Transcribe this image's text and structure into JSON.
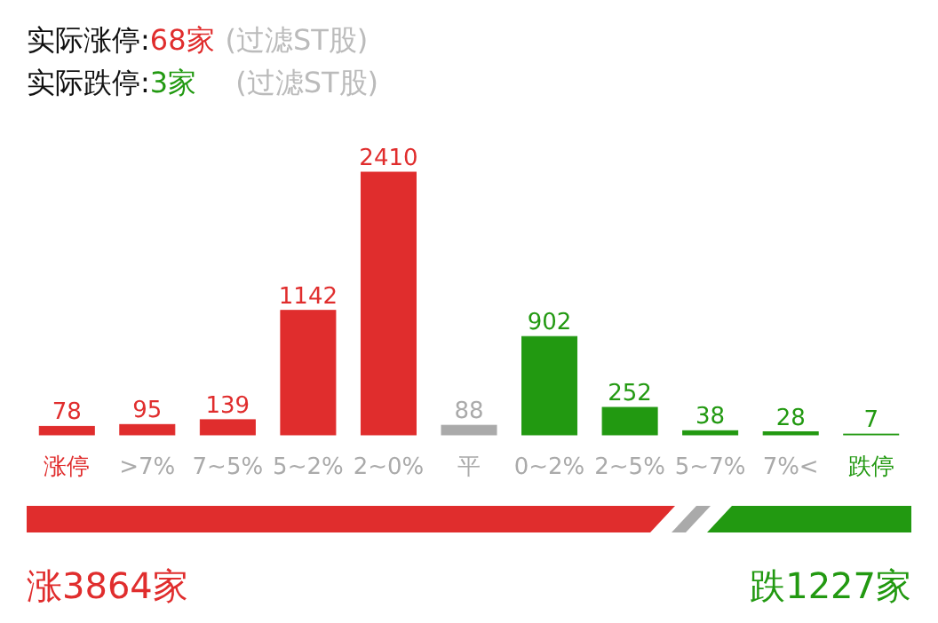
{
  "chart_data": {
    "type": "bar",
    "categories": [
      "涨停",
      ">7%",
      "7~5%",
      "5~2%",
      "2~0%",
      "平",
      "0~2%",
      "2~5%",
      "5~7%",
      "7%<",
      "跌停"
    ],
    "values": [
      78,
      95,
      139,
      1142,
      2410,
      88,
      902,
      252,
      38,
      28,
      7
    ],
    "colors": [
      "#e02d2d",
      "#e02d2d",
      "#e02d2d",
      "#e02d2d",
      "#e02d2d",
      "#aaaaaa",
      "#229911",
      "#229911",
      "#229911",
      "#229911",
      "#229911"
    ],
    "data_labels": true,
    "annotations": [
      "实际涨停: ",
      "68家",
      "(过滤ST股)",
      "实际跌停: ",
      "3家",
      "(过滤ST股)",
      "涨3864家",
      "跌1227家"
    ]
  }
}
